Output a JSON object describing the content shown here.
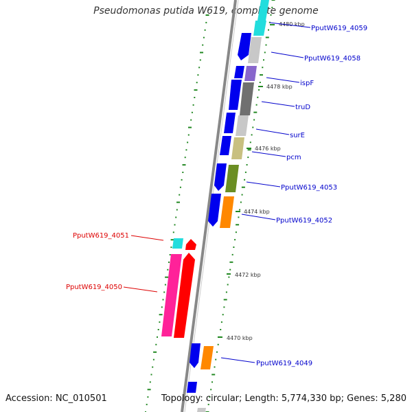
{
  "title": "Pseudomonas putida W619, complete genome",
  "accession": "Accession: NC_010501",
  "topology": "Topology: circular; Length: 5,774,330 bp; Genes: 5,280",
  "ticks": [
    {
      "label": "4480 kbp",
      "kbp": 4480
    },
    {
      "label": "4478 kbp",
      "kbp": 4478
    },
    {
      "label": "4476 kbp",
      "kbp": 4476
    },
    {
      "label": "4474 kbp",
      "kbp": 4474
    },
    {
      "label": "4472 kbp",
      "kbp": 4472
    },
    {
      "label": "4470 kbp",
      "kbp": 4470
    }
  ],
  "gene_labels": [
    {
      "name": "PputW619_4059",
      "strand": "forward"
    },
    {
      "name": "PputW619_4058",
      "strand": "forward"
    },
    {
      "name": "ispF",
      "strand": "forward"
    },
    {
      "name": "truD",
      "strand": "forward"
    },
    {
      "name": "surE",
      "strand": "forward"
    },
    {
      "name": "pcm",
      "strand": "forward"
    },
    {
      "name": "PputW619_4053",
      "strand": "forward"
    },
    {
      "name": "PputW619_4052",
      "strand": "forward"
    },
    {
      "name": "PputW619_4051",
      "strand": "reverse"
    },
    {
      "name": "PputW619_4050",
      "strand": "reverse"
    },
    {
      "name": "PputW619_4049",
      "strand": "forward"
    }
  ],
  "colors": {
    "forward_label": "#0000cc",
    "reverse_label": "#dd0000",
    "backbone": "#888888",
    "tick_mark": "#228822",
    "cds_blue": "#0000ee",
    "cyan": "#22dddd",
    "light_gray": "#c8c8c8",
    "purple": "#8866cc",
    "dark_gray": "#707070",
    "khaki": "#c8c080",
    "olive": "#6b8e23",
    "orange": "#ff8800",
    "pink": "#ff2299",
    "red": "#ff0000"
  }
}
